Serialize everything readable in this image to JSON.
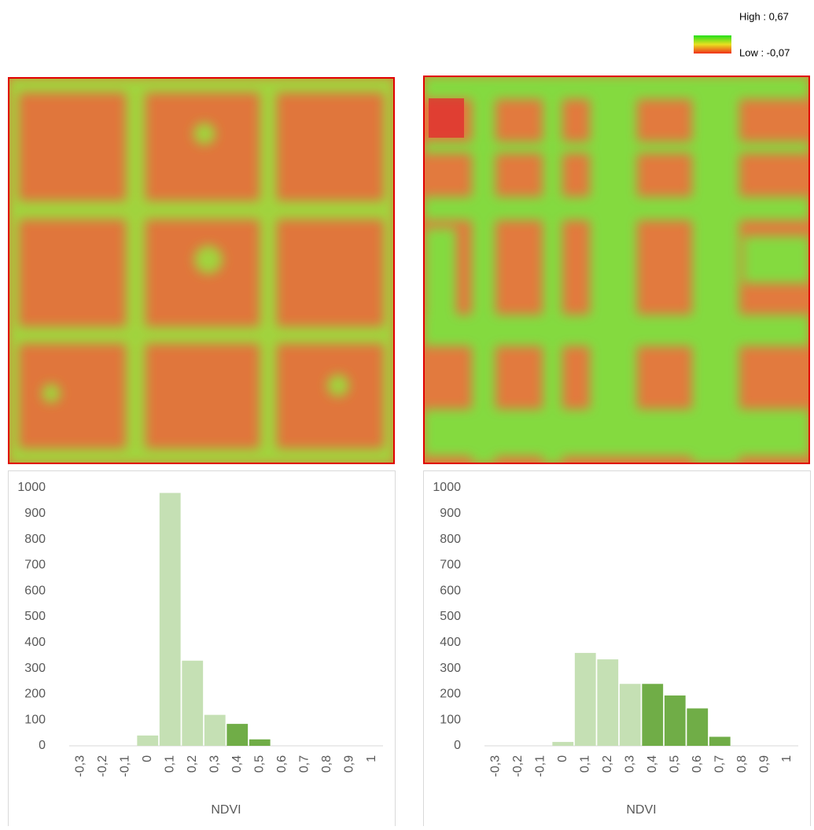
{
  "legend": {
    "high": "High : 0,67",
    "low": "Low : -0,07"
  },
  "chart_data": [
    {
      "type": "bar",
      "x_label": "NDVI",
      "categories": [
        "-0,3",
        "-0,2",
        "-0,1",
        "0",
        "0,1",
        "0,2",
        "0,3",
        "0,4",
        "0,5",
        "0,6",
        "0,7",
        "0,8",
        "0,9",
        "1"
      ],
      "values": [
        0,
        0,
        0,
        40,
        980,
        330,
        120,
        85,
        25,
        0,
        0,
        0,
        0,
        0
      ],
      "colors": [
        "#c5e0b4",
        "#c5e0b4",
        "#c5e0b4",
        "#c5e0b4",
        "#c5e0b4",
        "#c5e0b4",
        "#c5e0b4",
        "#70ad47",
        "#70ad47",
        "#70ad47",
        "#70ad47",
        "#70ad47",
        "#70ad47",
        "#70ad47"
      ],
      "ylim": [
        0,
        1000
      ],
      "yticks": [
        0,
        100,
        200,
        300,
        400,
        500,
        600,
        700,
        800,
        900,
        1000
      ]
    },
    {
      "type": "bar",
      "x_label": "NDVI",
      "categories": [
        "-0,3",
        "-0,2",
        "-0,1",
        "0",
        "0,1",
        "0,2",
        "0,3",
        "0,4",
        "0,5",
        "0,6",
        "0,7",
        "0,8",
        "0,9",
        "1"
      ],
      "values": [
        0,
        0,
        0,
        15,
        360,
        335,
        240,
        240,
        195,
        145,
        35,
        0,
        0,
        0
      ],
      "colors": [
        "#c5e0b4",
        "#c5e0b4",
        "#c5e0b4",
        "#c5e0b4",
        "#c5e0b4",
        "#c5e0b4",
        "#c5e0b4",
        "#70ad47",
        "#70ad47",
        "#70ad47",
        "#70ad47",
        "#70ad47",
        "#70ad47",
        "#70ad47"
      ],
      "ylim": [
        0,
        1000
      ],
      "yticks": [
        0,
        100,
        200,
        300,
        400,
        500,
        600,
        700,
        800,
        900,
        1000
      ]
    }
  ]
}
